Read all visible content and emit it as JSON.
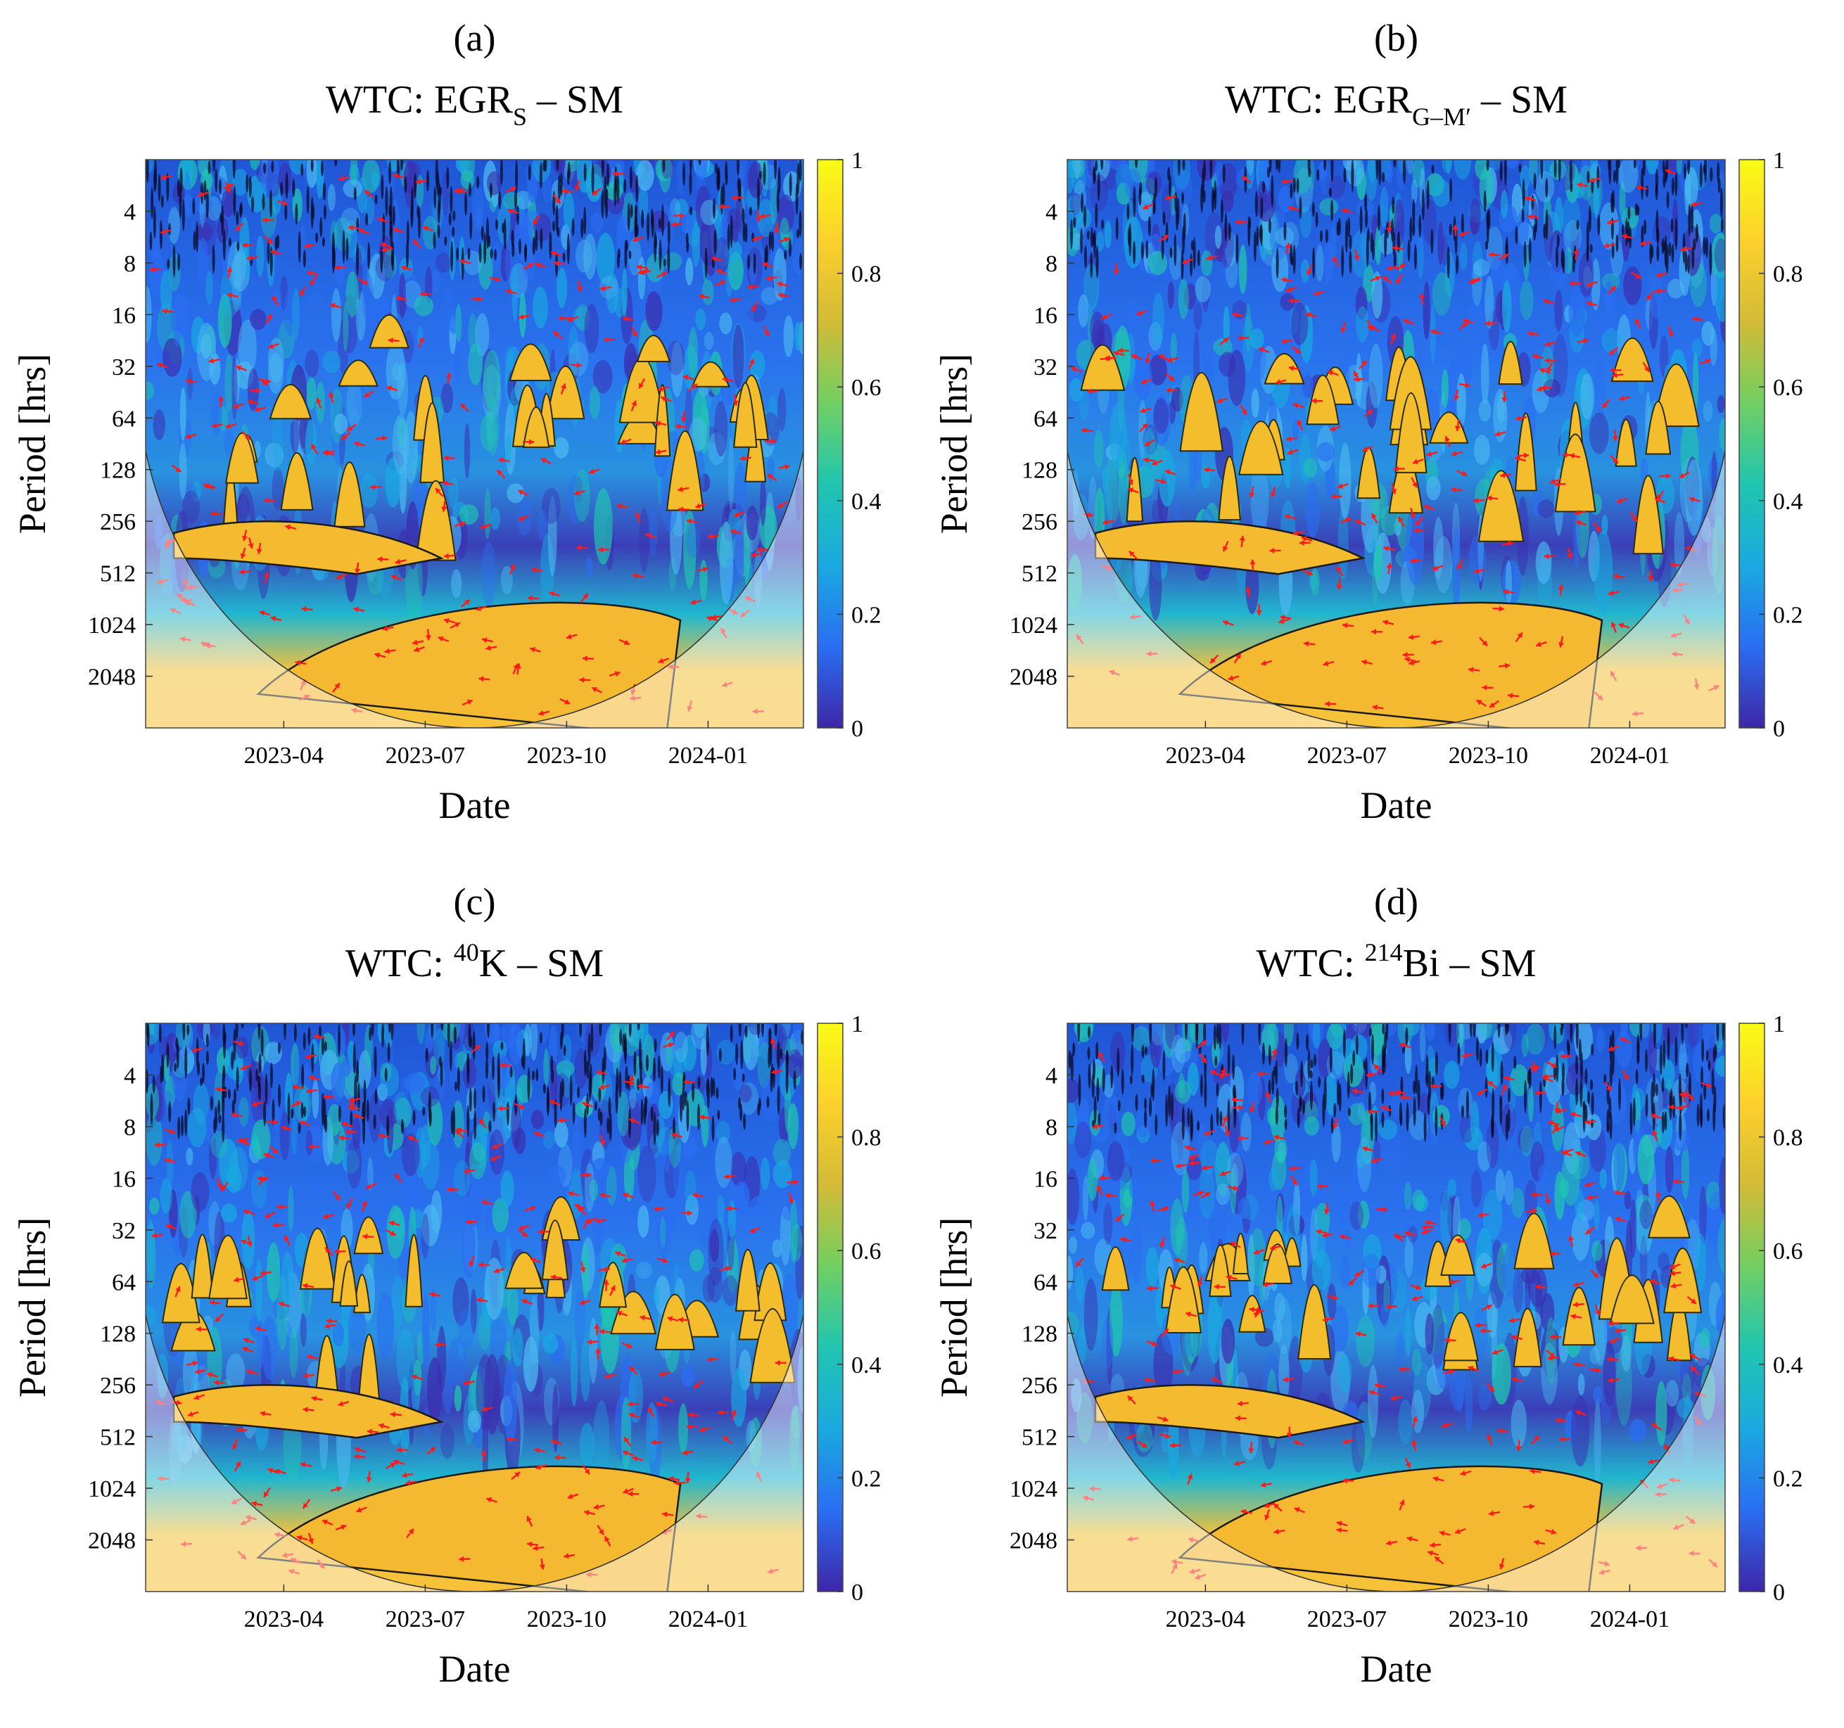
{
  "chart_data": [
    {
      "type": "heatmap",
      "panel_label": "(a)",
      "title_prefix": "WTC: ",
      "title_main": "EGR",
      "title_sub": "S",
      "title_sup": "",
      "title_suffix": " – SM",
      "xlabel": "Date",
      "ylabel": "Period [hrs]",
      "x_ticks": [
        "2023-04",
        "2023-07",
        "2023-10",
        "2024-01"
      ],
      "y_ticks": [
        "4",
        "8",
        "16",
        "32",
        "64",
        "128",
        "256",
        "512",
        "1024",
        "2048"
      ],
      "colorbar_ticks": [
        "0",
        "0.2",
        "0.4",
        "0.6",
        "0.8",
        "1"
      ],
      "colorbar_range": [
        0,
        1
      ],
      "y_scale": "log2",
      "y_range": [
        2,
        4096
      ],
      "colormap": [
        "#3e26a8",
        "#2a6ef2",
        "#1aa9e0",
        "#20c5b0",
        "#70cf62",
        "#d3bb36",
        "#fcd02c",
        "#f9fb15"
      ],
      "arrow_color": "#ff1a1a",
      "contour_color": "#1a1a1a"
    },
    {
      "type": "heatmap",
      "panel_label": "(b)",
      "title_prefix": "WTC: ",
      "title_main": "EGR",
      "title_sub": "G–M′",
      "title_sup": "",
      "title_suffix": " – SM",
      "xlabel": "Date",
      "ylabel": "Period [hrs]",
      "x_ticks": [
        "2023-04",
        "2023-07",
        "2023-10",
        "2024-01"
      ],
      "y_ticks": [
        "4",
        "8",
        "16",
        "32",
        "64",
        "128",
        "256",
        "512",
        "1024",
        "2048"
      ],
      "colorbar_ticks": [
        "0",
        "0.2",
        "0.4",
        "0.6",
        "0.8",
        "1"
      ],
      "colorbar_range": [
        0,
        1
      ],
      "y_scale": "log2",
      "y_range": [
        2,
        4096
      ],
      "colormap": [
        "#3e26a8",
        "#2a6ef2",
        "#1aa9e0",
        "#20c5b0",
        "#70cf62",
        "#d3bb36",
        "#fcd02c",
        "#f9fb15"
      ],
      "arrow_color": "#ff1a1a",
      "contour_color": "#1a1a1a"
    },
    {
      "type": "heatmap",
      "panel_label": "(c)",
      "title_prefix": "WTC: ",
      "title_main": "K",
      "title_sub": "",
      "title_sup": "40",
      "title_suffix": " – SM",
      "xlabel": "Date",
      "ylabel": "Period [hrs]",
      "x_ticks": [
        "2023-04",
        "2023-07",
        "2023-10",
        "2024-01"
      ],
      "y_ticks": [
        "4",
        "8",
        "16",
        "32",
        "64",
        "128",
        "256",
        "512",
        "1024",
        "2048"
      ],
      "colorbar_ticks": [
        "0",
        "0.2",
        "0.4",
        "0.6",
        "0.8",
        "1"
      ],
      "colorbar_range": [
        0,
        1
      ],
      "y_scale": "log2",
      "y_range": [
        2,
        4096
      ],
      "colormap": [
        "#3e26a8",
        "#2a6ef2",
        "#1aa9e0",
        "#20c5b0",
        "#70cf62",
        "#d3bb36",
        "#fcd02c",
        "#f9fb15"
      ],
      "arrow_color": "#ff1a1a",
      "contour_color": "#1a1a1a"
    },
    {
      "type": "heatmap",
      "panel_label": "(d)",
      "title_prefix": "WTC: ",
      "title_main": "Bi",
      "title_sub": "",
      "title_sup": "214",
      "title_suffix": " – SM",
      "xlabel": "Date",
      "ylabel": "Period [hrs]",
      "x_ticks": [
        "2023-04",
        "2023-07",
        "2023-10",
        "2024-01"
      ],
      "y_ticks": [
        "4",
        "8",
        "16",
        "32",
        "64",
        "128",
        "256",
        "512",
        "1024",
        "2048"
      ],
      "colorbar_ticks": [
        "0",
        "0.2",
        "0.4",
        "0.6",
        "0.8",
        "1"
      ],
      "colorbar_range": [
        0,
        1
      ],
      "y_scale": "log2",
      "y_range": [
        2,
        4096
      ],
      "colormap": [
        "#3e26a8",
        "#2a6ef2",
        "#1aa9e0",
        "#20c5b0",
        "#70cf62",
        "#d3bb36",
        "#fcd02c",
        "#f9fb15"
      ],
      "arrow_color": "#ff1a1a",
      "contour_color": "#1a1a1a"
    }
  ]
}
